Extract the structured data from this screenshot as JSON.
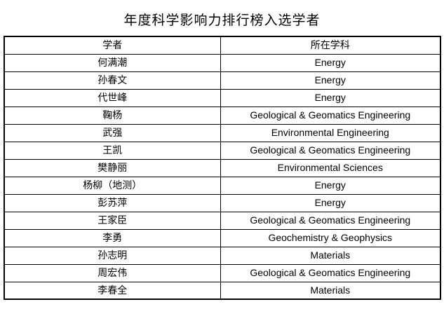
{
  "title": "年度科学影响力排行榜入选学者",
  "table": {
    "headers": [
      "学者",
      "所在学科"
    ],
    "rows": [
      [
        "何满潮",
        "Energy"
      ],
      [
        "孙春文",
        "Energy"
      ],
      [
        "代世峰",
        "Energy"
      ],
      [
        "鞠杨",
        "Geological & Geomatics Engineering"
      ],
      [
        "武强",
        "Environmental Engineering"
      ],
      [
        "王凯",
        "Geological & Geomatics Engineering"
      ],
      [
        "樊静丽",
        "Environmental Sciences"
      ],
      [
        "杨柳（地测）",
        "Energy"
      ],
      [
        "彭苏萍",
        "Energy"
      ],
      [
        "王家臣",
        "Geological & Geomatics Engineering"
      ],
      [
        "李勇",
        "Geochemistry & Geophysics"
      ],
      [
        "孙志明",
        "Materials"
      ],
      [
        "周宏伟",
        "Geological & Geomatics Engineering"
      ],
      [
        "李春全",
        "Materials"
      ]
    ]
  },
  "colors": {
    "border": "#000000",
    "text": "#000000",
    "background": "#ffffff"
  }
}
